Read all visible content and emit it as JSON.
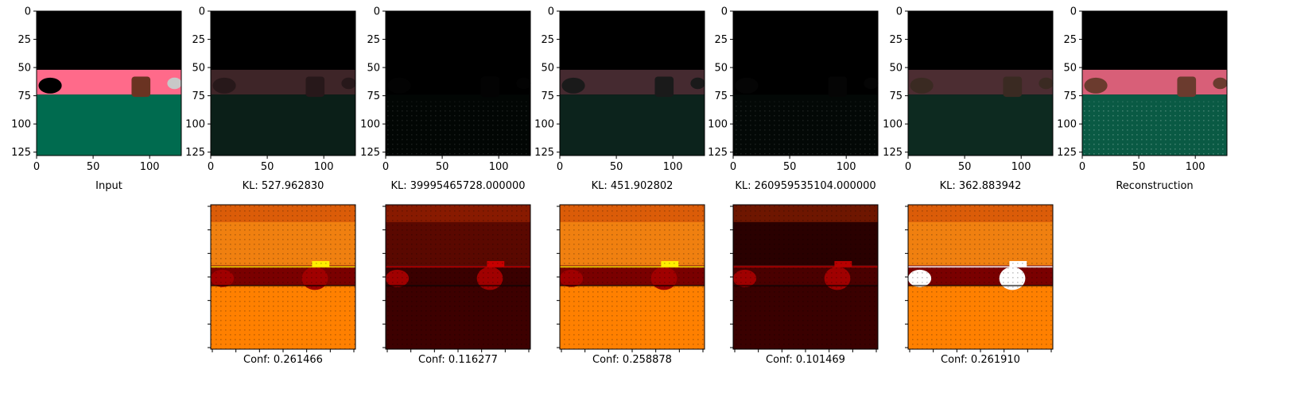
{
  "chart_data": [
    {
      "type": "heatmap",
      "kind": "image",
      "label": "Input",
      "xlim": [
        0,
        128
      ],
      "ylim": [
        128,
        0
      ],
      "xticks": [
        0,
        50,
        100
      ],
      "yticks": [
        0,
        25,
        50,
        75,
        100,
        125
      ],
      "palette": {
        "sky": "#000000",
        "road": "#ff6a8a",
        "ground": "#006b4f",
        "objects": "#6a3322"
      }
    },
    {
      "type": "heatmap",
      "kind": "image",
      "label": "KL: 527.962830",
      "xlim": [
        0,
        128
      ],
      "ylim": [
        128,
        0
      ],
      "xticks": [
        0,
        50,
        100
      ],
      "yticks": [
        0,
        25,
        50,
        75,
        100,
        125
      ],
      "palette": {
        "sky": "#000000",
        "road": "#3e2528",
        "ground": "#0b1f18",
        "objects": "#27181a"
      }
    },
    {
      "type": "heatmap",
      "kind": "image",
      "label": "KL: 39995465728.000000",
      "xlim": [
        0,
        128
      ],
      "ylim": [
        128,
        0
      ],
      "xticks": [
        0,
        50,
        100
      ],
      "yticks": [
        0,
        25,
        50,
        75,
        100,
        125
      ],
      "palette": {
        "sky": "#000000",
        "road": "#000000",
        "ground": "#020604",
        "objects": "#030303"
      }
    },
    {
      "type": "heatmap",
      "kind": "image",
      "label": "KL: 451.902802",
      "xlim": [
        0,
        128
      ],
      "ylim": [
        128,
        0
      ],
      "xticks": [
        0,
        50,
        100
      ],
      "yticks": [
        0,
        25,
        50,
        75,
        100,
        125
      ],
      "palette": {
        "sky": "#000000",
        "road": "#452a30",
        "ground": "#0c231c",
        "objects": "#1a1a1a"
      }
    },
    {
      "type": "heatmap",
      "kind": "image",
      "label": "KL: 260959535104.000000",
      "xlim": [
        0,
        128
      ],
      "ylim": [
        128,
        0
      ],
      "xticks": [
        0,
        50,
        100
      ],
      "yticks": [
        0,
        25,
        50,
        75,
        100,
        125
      ],
      "palette": {
        "sky": "#000000",
        "road": "#000000",
        "ground": "#030806",
        "objects": "#050505"
      }
    },
    {
      "type": "heatmap",
      "kind": "image",
      "label": "KL: 362.883942",
      "xlim": [
        0,
        128
      ],
      "ylim": [
        128,
        0
      ],
      "xticks": [
        0,
        50,
        100
      ],
      "yticks": [
        0,
        25,
        50,
        75,
        100,
        125
      ],
      "palette": {
        "sky": "#000000",
        "road": "#4c2d32",
        "ground": "#0d2a20",
        "objects": "#3a2a22"
      }
    },
    {
      "type": "heatmap",
      "kind": "image",
      "label": "Reconstruction",
      "xlim": [
        0,
        128
      ],
      "ylim": [
        128,
        0
      ],
      "xticks": [
        0,
        50,
        100
      ],
      "yticks": [
        0,
        25,
        50,
        75,
        100,
        125
      ],
      "palette": {
        "sky": "#000000",
        "road": "#d85f78",
        "ground": "#0a5a44",
        "objects": "#6b3b2e"
      }
    },
    {
      "type": "heatmap",
      "kind": "confidence",
      "label": "Conf: 0.261466",
      "confidence": 0.261466,
      "palette": {
        "top": "#f08010",
        "band": "#7a0000",
        "bottom": "#ff8000",
        "highlight": "#ffee00"
      }
    },
    {
      "type": "heatmap",
      "kind": "confidence",
      "label": "Conf: 0.116277",
      "confidence": 0.116277,
      "palette": {
        "top": "#5a0800",
        "band": "#3a0000",
        "bottom": "#3d0000",
        "highlight": "#c80000"
      }
    },
    {
      "type": "heatmap",
      "kind": "confidence",
      "label": "Conf: 0.258878",
      "confidence": 0.258878,
      "palette": {
        "top": "#f08010",
        "band": "#7a0000",
        "bottom": "#ff8000",
        "highlight": "#ffee00"
      }
    },
    {
      "type": "heatmap",
      "kind": "confidence",
      "label": "Conf: 0.101469",
      "confidence": 0.101469,
      "palette": {
        "top": "#2a0000",
        "band": "#4a0000",
        "bottom": "#3a0000",
        "highlight": "#b80000"
      }
    },
    {
      "type": "heatmap",
      "kind": "confidence",
      "label": "Conf: 0.261910",
      "confidence": 0.26191,
      "palette": {
        "top": "#f08010",
        "band": "#7a0000",
        "bottom": "#ff8000",
        "highlight": "#ffffff"
      }
    }
  ]
}
